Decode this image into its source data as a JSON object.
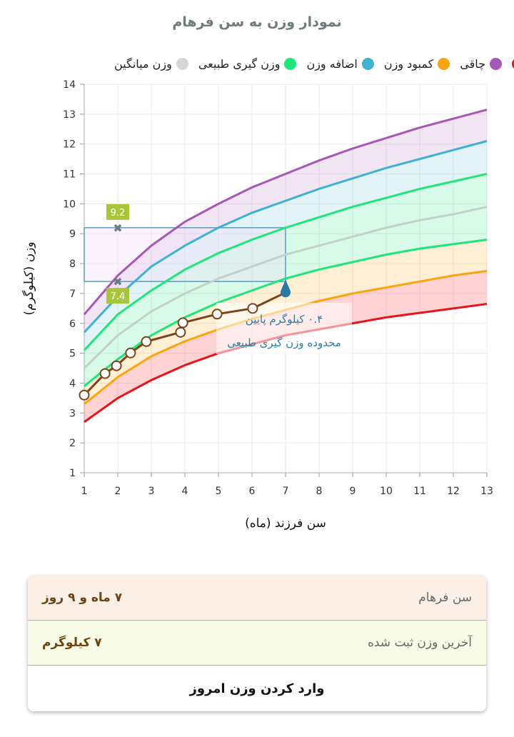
{
  "chart_data": {
    "type": "line",
    "title": "نمودار وزن به سن فرهام",
    "xlabel": "سن فرزند (ماه)",
    "ylabel": "وزن (کیلوگرم)",
    "xlim": [
      1,
      13
    ],
    "ylim": [
      1,
      14
    ],
    "xticks": [
      1,
      2,
      3,
      4,
      5,
      6,
      7,
      8,
      9,
      10,
      11,
      12,
      13
    ],
    "yticks": [
      1,
      2,
      3,
      4,
      5,
      6,
      7,
      8,
      9,
      10,
      11,
      12,
      13,
      14
    ],
    "grid": true,
    "legend_placement": "top",
    "x": [
      1,
      2,
      3,
      4,
      5,
      6,
      7,
      8,
      9,
      10,
      11,
      12,
      13
    ],
    "series": [
      {
        "name": "",
        "color": "#e8141b",
        "values": [
          2.7,
          3.5,
          4.1,
          4.6,
          5.0,
          5.3,
          5.6,
          5.8,
          6.0,
          6.2,
          6.35,
          6.5,
          6.65
        ]
      },
      {
        "name": "کمبود وزن",
        "color": "#f9a50c",
        "values": [
          3.3,
          4.2,
          4.9,
          5.4,
          5.8,
          6.15,
          6.45,
          6.75,
          7.0,
          7.2,
          7.4,
          7.6,
          7.75
        ]
      },
      {
        "name": "وزن گیری طبیعی",
        "color": "#1ee67a",
        "values": [
          3.9,
          4.8,
          5.6,
          6.2,
          6.7,
          7.1,
          7.5,
          7.8,
          8.05,
          8.3,
          8.5,
          8.65,
          8.8
        ]
      },
      {
        "name": "وزن میانگین",
        "color": "#c4d1cb",
        "values": [
          4.5,
          5.6,
          6.4,
          7.0,
          7.5,
          7.9,
          8.3,
          8.6,
          8.9,
          9.2,
          9.45,
          9.65,
          9.9
        ]
      },
      {
        "name": "وزن گیری طبیعی",
        "color": "#1ee67a",
        "values": [
          5.1,
          6.3,
          7.1,
          7.8,
          8.35,
          8.8,
          9.2,
          9.55,
          9.9,
          10.2,
          10.5,
          10.75,
          11.0
        ]
      },
      {
        "name": "اضافه وزن",
        "color": "#3fb2d2",
        "values": [
          5.7,
          6.9,
          7.9,
          8.6,
          9.2,
          9.7,
          10.1,
          10.5,
          10.85,
          11.2,
          11.5,
          11.8,
          12.1
        ]
      },
      {
        "name": "چاقی",
        "color": "#a757b5",
        "values": [
          6.3,
          7.6,
          8.6,
          9.4,
          10.0,
          10.55,
          11.0,
          11.45,
          11.85,
          12.2,
          12.55,
          12.85,
          13.15
        ]
      }
    ],
    "child": {
      "color": "#7a4418",
      "x": [
        1,
        1.62,
        1.96,
        2.38,
        2.85,
        3.87,
        3.94,
        4.96,
        6.02,
        7
      ],
      "y": [
        3.6,
        4.32,
        4.58,
        5.01,
        5.39,
        5.7,
        6.02,
        6.31,
        6.5,
        7.03
      ]
    },
    "range_box": {
      "x": [
        1,
        7
      ],
      "y": [
        7.4,
        9.2
      ],
      "upper_label": "9.2",
      "lower_label": "7.4",
      "label_x": 2
    },
    "annotation": {
      "line1": "۰.۴ کیلوگرم پایین",
      "line2": "محدوده وزن گیری طبیعی",
      "color": "#2e7fa0"
    }
  },
  "legend": [
    {
      "label": "",
      "color": "#e8141b"
    },
    {
      "label": "چاقی",
      "color": "#a757b5"
    },
    {
      "label": "کمبود وزن",
      "color": "#f9a50c"
    },
    {
      "label": "اضافه وزن",
      "color": "#3fb2d2"
    },
    {
      "label": "وزن گیری طبیعی",
      "color": "#1ee67a"
    },
    {
      "label": "وزن میانگین",
      "color": "#d6d6d6"
    }
  ],
  "info": {
    "age_label": "سن فرهام",
    "age_value": "۷ ماه و ۹ روز",
    "weight_label": "آخرین وزن ثبت شده",
    "weight_value": "۷ کیلوگرم",
    "button": "وارد کردن وزن امروز"
  }
}
